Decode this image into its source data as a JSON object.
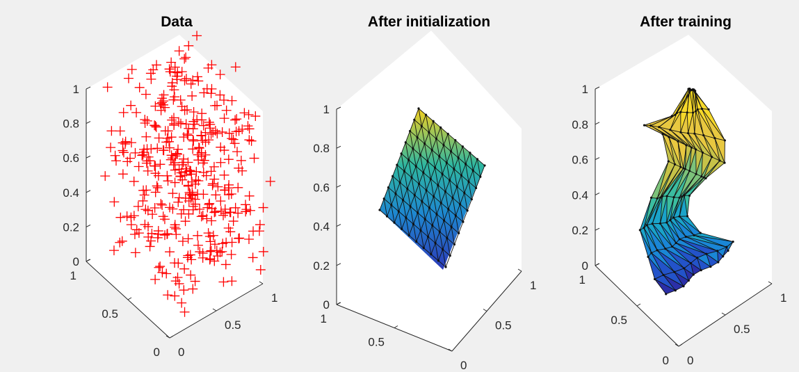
{
  "panels": [
    {
      "title": "Data"
    },
    {
      "title": "After initialization"
    },
    {
      "title": "After training"
    }
  ],
  "colors": {
    "figure_background": "#f0f0f0",
    "axes_background": "#ffffff",
    "data_marker": "#ff0000",
    "mesh_edges": "#111111",
    "colormap": "parula"
  },
  "chart_data": [
    {
      "type": "scatter",
      "marker": "+",
      "title": "Data",
      "xlabel": "",
      "ylabel": "",
      "zlabel": "",
      "xlim": [
        0,
        1
      ],
      "ylim": [
        0,
        1
      ],
      "zlim": [
        0,
        1
      ],
      "z_ticks": [
        "0",
        "0.2",
        "0.4",
        "0.6",
        "0.8",
        "1"
      ],
      "x_ticks": [
        "0",
        "0.5",
        "1"
      ],
      "y_ticks": [
        "0",
        "0.5",
        "1"
      ],
      "grid": false,
      "n_points": 400,
      "distribution": "uniform random in unit cube"
    },
    {
      "type": "surface",
      "title": "After initialization",
      "xlabel": "",
      "ylabel": "",
      "zlabel": "",
      "xlim": [
        0,
        1
      ],
      "ylim": [
        0,
        1
      ],
      "zlim": [
        0,
        1
      ],
      "z_ticks": [
        "0",
        "0.2",
        "0.4",
        "0.6",
        "0.8",
        "1"
      ],
      "x_ticks": [
        "0.5",
        "1"
      ],
      "y_ticks": [
        "0",
        "0.5",
        "1"
      ],
      "grid": false,
      "mesh_size": [
        10,
        10
      ],
      "z_range": [
        0.17,
        0.98
      ],
      "description_visible": "flat triangulated planar mesh"
    },
    {
      "type": "surface",
      "title": "After training",
      "xlabel": "",
      "ylabel": "",
      "zlabel": "",
      "xlim": [
        0,
        1
      ],
      "ylim": [
        0,
        1
      ],
      "zlim": [
        0,
        1
      ],
      "z_ticks": [
        "0",
        "0.2",
        "0.4",
        "0.6",
        "0.8",
        "1"
      ],
      "x_ticks": [
        "0",
        "0.5",
        "1"
      ],
      "y_ticks": [
        "0",
        "0.5",
        "1"
      ],
      "grid": false,
      "mesh_size": [
        10,
        10
      ],
      "z_range": [
        0.0,
        1.0
      ]
    }
  ]
}
